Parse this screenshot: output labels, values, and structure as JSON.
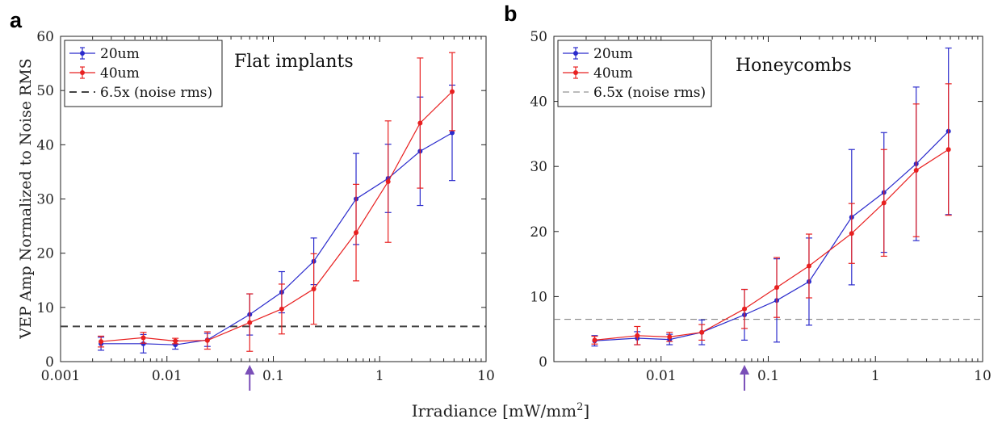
{
  "figure": {
    "shared_xlabel": "Irradiance [mW/mm",
    "shared_xlabel_sup": "2",
    "shared_xlabel_end": "]",
    "ylabel": "VEP Amp Normalized to Noise RMS",
    "colors": {
      "series_20um": "#2a2acc",
      "series_40um": "#e82020",
      "threshold": "#444444",
      "arrow": "#7a4fb8"
    }
  },
  "chart_data": [
    {
      "type": "line",
      "panel_label": "a",
      "title": "Flat implants",
      "xlabel": "",
      "ylabel": "VEP Amp Normalized to Noise RMS",
      "xscale": "log",
      "xlim": [
        0.001,
        10
      ],
      "ylim": [
        0,
        60
      ],
      "xticks": [
        0.001,
        0.01,
        0.1,
        1,
        10
      ],
      "xtick_labels": [
        "0.001",
        "0.01",
        "0.1",
        "1",
        "10"
      ],
      "yticks": [
        0,
        10,
        20,
        30,
        40,
        50,
        60
      ],
      "ytick_labels": [
        "0",
        "10",
        "20",
        "30",
        "40",
        "50",
        "60"
      ],
      "grid": false,
      "legend_position": "top-left",
      "threshold": {
        "name": "6.5x (noise rms)",
        "y": 6.5
      },
      "arrow_x": 0.06,
      "series": [
        {
          "name": "20um",
          "color": "#2a2acc",
          "x": [
            0.0024,
            0.006,
            0.012,
            0.024,
            0.06,
            0.12,
            0.24,
            0.6,
            1.2,
            2.4,
            4.8
          ],
          "y": [
            3.3,
            3.3,
            3.1,
            4.0,
            8.7,
            12.8,
            18.5,
            30.0,
            33.8,
            38.8,
            42.2
          ],
          "err": [
            1.2,
            1.7,
            0.8,
            1.2,
            3.8,
            3.8,
            4.3,
            8.4,
            6.3,
            10.0,
            8.8
          ]
        },
        {
          "name": "40um",
          "color": "#e82020",
          "x": [
            0.0024,
            0.006,
            0.012,
            0.024,
            0.06,
            0.12,
            0.24,
            0.6,
            1.2,
            2.4,
            4.8
          ],
          "y": [
            3.7,
            4.4,
            3.8,
            3.9,
            7.2,
            9.7,
            13.4,
            23.8,
            33.2,
            44.0,
            49.8
          ],
          "err": [
            1.0,
            1.0,
            0.5,
            1.6,
            5.3,
            4.6,
            6.5,
            8.9,
            11.2,
            12.0,
            7.2
          ]
        }
      ]
    },
    {
      "type": "line",
      "panel_label": "b",
      "title": "Honeycombs",
      "xlabel": "",
      "ylabel": "",
      "xscale": "log",
      "xlim": [
        0.001,
        10
      ],
      "ylim": [
        0,
        50
      ],
      "xticks": [
        0.01,
        0.1,
        1,
        10
      ],
      "xtick_labels": [
        "0.01",
        "0.1",
        "1",
        "10"
      ],
      "yticks": [
        0,
        10,
        20,
        30,
        40,
        50
      ],
      "ytick_labels": [
        "0",
        "10",
        "20",
        "30",
        "40",
        "50"
      ],
      "grid": false,
      "legend_position": "top-left",
      "threshold": {
        "name": "6.5x (noise rms)",
        "y": 6.5
      },
      "arrow_x": 0.06,
      "series": [
        {
          "name": "20um",
          "color": "#2a2acc",
          "x": [
            0.0024,
            0.006,
            0.012,
            0.024,
            0.06,
            0.12,
            0.24,
            0.6,
            1.2,
            2.4,
            4.8
          ],
          "y": [
            3.2,
            3.6,
            3.4,
            4.5,
            7.2,
            9.4,
            12.3,
            22.2,
            26.0,
            30.4,
            35.4
          ],
          "err": [
            0.8,
            1.0,
            0.8,
            1.9,
            3.9,
            6.4,
            6.7,
            10.4,
            9.2,
            11.8,
            12.8
          ]
        },
        {
          "name": "40um",
          "color": "#e82020",
          "x": [
            0.0024,
            0.006,
            0.012,
            0.024,
            0.06,
            0.12,
            0.24,
            0.6,
            1.2,
            2.4,
            4.8
          ],
          "y": [
            3.3,
            4.0,
            3.8,
            4.5,
            8.1,
            11.4,
            14.7,
            19.7,
            24.4,
            29.4,
            32.6
          ],
          "err": [
            0.6,
            1.4,
            0.7,
            1.2,
            3.0,
            4.6,
            4.9,
            4.6,
            8.2,
            10.2,
            10.1
          ]
        }
      ]
    }
  ]
}
